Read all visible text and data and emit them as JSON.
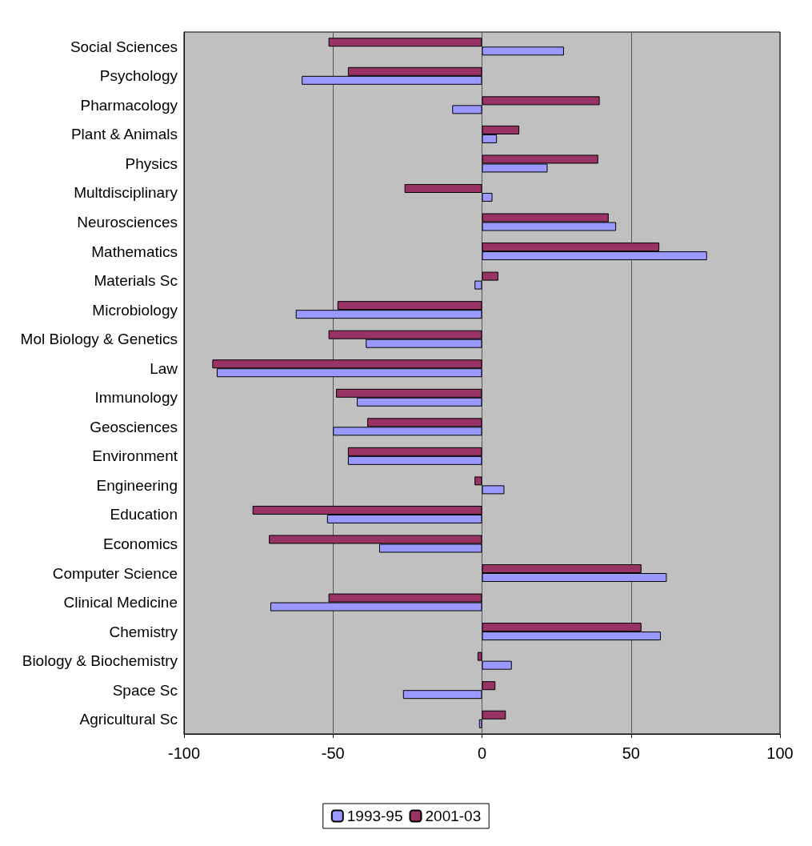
{
  "chart_data": {
    "type": "bar",
    "orientation": "horizontal",
    "categories": [
      "Social Sciences",
      "Psychology",
      "Pharmacology",
      "Plant & Animals",
      "Physics",
      "Multdisciplinary",
      "Neurosciences",
      "Mathematics",
      "Materials Sc",
      "Microbiology",
      "Mol Biology & Genetics",
      "Law",
      "Immunology",
      "Geosciences",
      "Environment",
      "Engineering",
      "Education",
      "Economics",
      "Computer Science",
      "Clinical Medicine",
      "Chemistry",
      "Biology & Biochemistry",
      "Space Sc",
      "Agricultural Sc"
    ],
    "series": [
      {
        "name": "1993-95",
        "color": "#9999ff",
        "values": [
          27.5,
          -60.5,
          -10,
          5,
          22,
          3.5,
          45,
          75.5,
          -2.5,
          -62.5,
          -39,
          -89,
          -42,
          -50,
          -45,
          7.5,
          -52,
          -34.5,
          62,
          -71,
          60,
          10,
          -26.5,
          -1
        ]
      },
      {
        "name": "2001-03",
        "color": "#993366",
        "values": [
          -51.5,
          -45,
          39.5,
          12.5,
          39,
          -26,
          42.5,
          59.5,
          5.5,
          -48.5,
          -51.5,
          -90.5,
          -49,
          -38.5,
          -45,
          -2.5,
          -77,
          -71.5,
          53.5,
          -51.5,
          53.5,
          -1.5,
          4.5,
          8
        ]
      }
    ],
    "xlim": [
      -100,
      100
    ],
    "xticks": [
      -100,
      -50,
      0,
      50,
      100
    ],
    "grid": "x",
    "legend": "bottom"
  }
}
